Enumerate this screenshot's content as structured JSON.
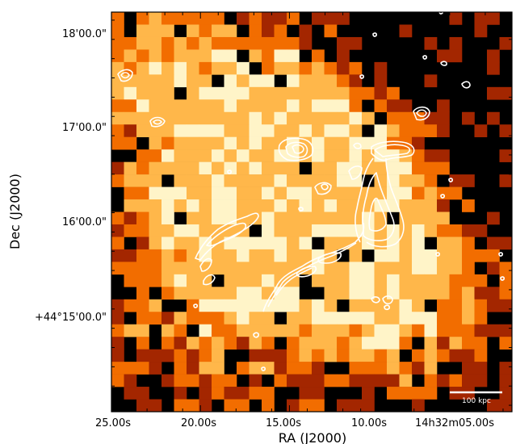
{
  "chart_data": {
    "type": "heatmap",
    "title": "",
    "xlabel": "RA (J2000)",
    "ylabel": "Dec (J2000)",
    "x_ticks": [
      {
        "label": "25.00s",
        "ra_offset_s": 25
      },
      {
        "label": "20.00s",
        "ra_offset_s": 20
      },
      {
        "label": "15.00s",
        "ra_offset_s": 15
      },
      {
        "label": "10.00s",
        "ra_offset_s": 10
      },
      {
        "label": "14h32m05.00s",
        "ra_offset_s": 5
      }
    ],
    "y_ticks": [
      {
        "label": "18'00.0\"",
        "dec_offset_arcsec": 180
      },
      {
        "label": "17'00.0\"",
        "dec_offset_arcsec": 120
      },
      {
        "label": "16'00.0\"",
        "dec_offset_arcsec": 60
      },
      {
        "label": "+44°15'00.0\"",
        "dec_offset_arcsec": 0
      }
    ],
    "xlim_ra_offset_s": [
      25,
      2.5
    ],
    "ylim_dec_offset_arcsec": [
      -54,
      195
    ],
    "scale_bar": {
      "label": "100 kpc"
    },
    "colormap": [
      "#000000",
      "#a32600",
      "#f26d00",
      "#ffb74a",
      "#fff4c8"
    ],
    "grid": false,
    "legend": "none",
    "contour_color": "#ffffff",
    "heatmap_grid": {
      "cols": 32,
      "rows": 32
    }
  }
}
